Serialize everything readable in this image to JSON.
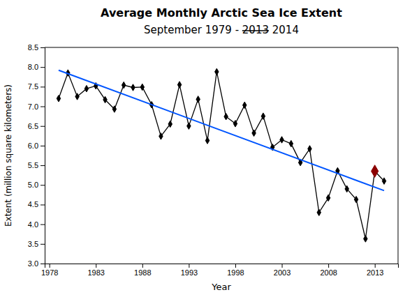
{
  "chart_data": {
    "type": "line",
    "title": "Average Monthly Arctic Sea Ice Extent",
    "subtitle": [
      "September 1979 - ",
      "2013",
      " 2014"
    ],
    "x_label": "Year",
    "y_label": "Extent (million square kilometers)",
    "xlim": [
      1977.5,
      2015.5
    ],
    "ylim": [
      3.0,
      8.5
    ],
    "xticks": [
      1978,
      1983,
      1988,
      1993,
      1998,
      2003,
      2008,
      2013
    ],
    "yticks": [
      {
        "value": 3.0,
        "label": "3.0"
      },
      3.5,
      {
        "value": 4.0,
        "label": "4.0"
      },
      4.5,
      {
        "value": 5.0,
        "label": "5.0"
      },
      5.5,
      {
        "value": 6.0,
        "label": "6.0"
      },
      6.5,
      {
        "value": 7.0,
        "label": "7.0"
      },
      7.5,
      {
        "value": 8.0,
        "label": "8.0"
      },
      8.5
    ],
    "grid": false,
    "series": [
      {
        "type": "line",
        "color": "#000000",
        "marker": "diamond",
        "line_style": "solid",
        "x": [
          1979,
          1980,
          1981,
          1982,
          1983,
          1984,
          1985,
          1986,
          1987,
          1988,
          1989,
          1990,
          1991,
          1992,
          1993,
          1994,
          1995,
          1996,
          1997,
          1998,
          1999,
          2000,
          2001,
          2002,
          2003,
          2004,
          2005,
          2006,
          2007,
          2008,
          2009,
          2010,
          2011,
          2012,
          2013,
          2014
        ],
        "values": [
          7.2,
          7.85,
          7.25,
          7.45,
          7.52,
          7.17,
          6.93,
          7.54,
          7.48,
          7.49,
          7.04,
          6.24,
          6.55,
          7.55,
          6.5,
          7.18,
          6.13,
          7.88,
          6.74,
          6.56,
          7.03,
          6.32,
          6.75,
          5.96,
          6.15,
          6.05,
          5.57,
          5.92,
          4.3,
          4.67,
          5.36,
          4.9,
          4.63,
          3.63,
          5.35,
          5.1
        ]
      },
      {
        "type": "scatter",
        "color": "#8B0000",
        "marker": "diamond",
        "x": [
          2013
        ],
        "values": [
          5.35
        ]
      },
      {
        "type": "line",
        "color": "#0055ff",
        "line_style": "solid",
        "x": [
          1979,
          2014
        ],
        "values": [
          7.918438,
          4.856006
        ]
      }
    ]
  }
}
